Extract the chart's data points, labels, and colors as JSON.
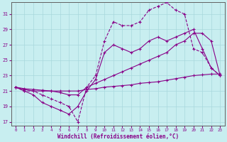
{
  "xlabel": "Windchill (Refroidissement éolien,°C)",
  "bg_color": "#c8eef0",
  "grid_color": "#a8d8dc",
  "line_color": "#880088",
  "xlim": [
    -0.5,
    23.5
  ],
  "ylim": [
    16.5,
    32.5
  ],
  "yticks": [
    17,
    19,
    21,
    23,
    25,
    27,
    29,
    31
  ],
  "xticks": [
    0,
    1,
    2,
    3,
    4,
    5,
    6,
    7,
    8,
    9,
    10,
    11,
    12,
    13,
    14,
    15,
    16,
    17,
    18,
    19,
    20,
    21,
    22,
    23
  ],
  "series": [
    {
      "x": [
        0,
        1,
        2,
        3,
        4,
        5,
        6,
        7,
        8,
        9,
        10,
        11,
        12,
        13,
        14,
        15,
        16,
        17,
        18,
        19,
        20,
        21,
        22,
        23
      ],
      "y": [
        21.5,
        21.0,
        21.0,
        20.5,
        20.0,
        19.5,
        19.0,
        17.0,
        21.5,
        23.0,
        27.5,
        30.0,
        29.5,
        29.5,
        30.0,
        31.5,
        32.0,
        32.5,
        31.5,
        31.0,
        26.5,
        26.0,
        24.0,
        23.0
      ],
      "dashed": true
    },
    {
      "x": [
        0,
        1,
        2,
        3,
        4,
        5,
        6,
        7,
        8,
        9,
        10,
        11,
        12,
        13,
        14,
        15,
        16,
        17,
        18,
        19,
        20,
        21,
        22,
        23
      ],
      "y": [
        21.5,
        21.0,
        20.5,
        19.5,
        19.0,
        18.5,
        18.0,
        19.0,
        21.0,
        22.5,
        26.0,
        27.0,
        26.5,
        26.0,
        26.5,
        27.5,
        28.0,
        27.5,
        28.0,
        28.5,
        29.0,
        26.5,
        24.0,
        23.0
      ],
      "dashed": false
    },
    {
      "x": [
        0,
        1,
        2,
        3,
        4,
        5,
        6,
        7,
        8,
        9,
        10,
        11,
        12,
        13,
        14,
        15,
        16,
        17,
        18,
        19,
        20,
        21,
        22,
        23
      ],
      "y": [
        21.5,
        21.2,
        21.0,
        21.0,
        21.0,
        20.8,
        20.5,
        20.5,
        21.5,
        22.0,
        22.5,
        23.0,
        23.5,
        24.0,
        24.5,
        25.0,
        25.5,
        26.0,
        27.0,
        27.5,
        28.5,
        28.5,
        27.5,
        23.0
      ],
      "dashed": false
    },
    {
      "x": [
        0,
        1,
        2,
        3,
        4,
        5,
        6,
        7,
        8,
        9,
        10,
        11,
        12,
        13,
        14,
        15,
        16,
        17,
        18,
        19,
        20,
        21,
        22,
        23
      ],
      "y": [
        21.5,
        21.3,
        21.2,
        21.1,
        21.0,
        21.0,
        21.0,
        21.0,
        21.2,
        21.3,
        21.5,
        21.6,
        21.7,
        21.8,
        22.0,
        22.1,
        22.2,
        22.4,
        22.6,
        22.8,
        23.0,
        23.1,
        23.2,
        23.2
      ],
      "dashed": false
    }
  ]
}
